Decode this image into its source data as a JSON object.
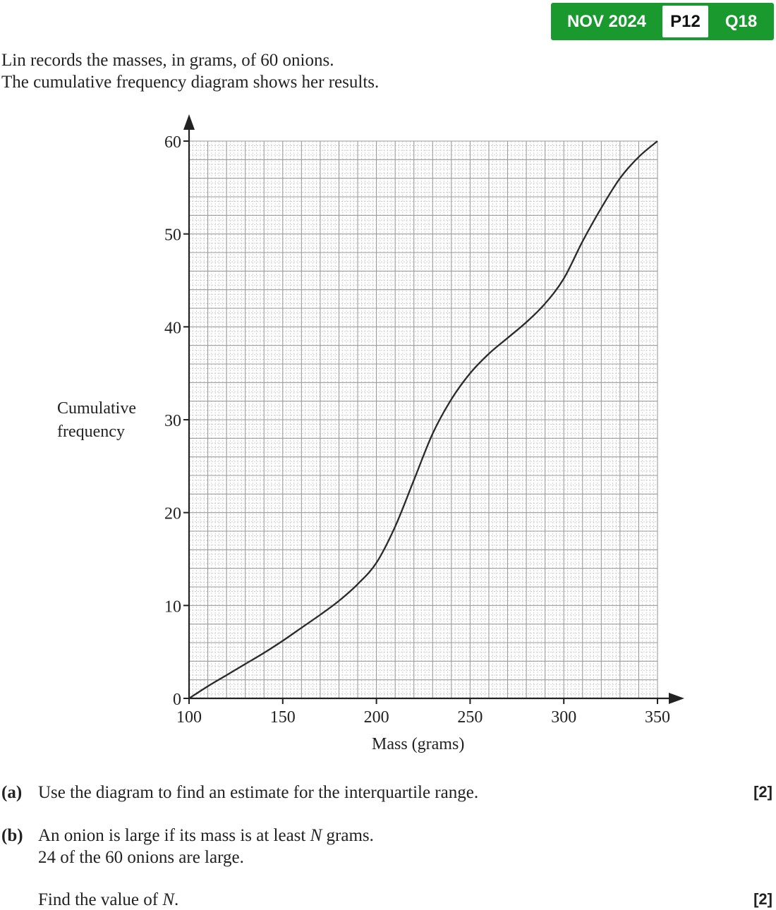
{
  "badge": {
    "session": "NOV 2024",
    "paper": "P12",
    "question": "Q18"
  },
  "intro": [
    "Lin records the masses, in grams, of 60 onions.",
    "The cumulative frequency diagram shows her results."
  ],
  "chart_data": {
    "type": "line",
    "title": "",
    "xlabel": "Mass (grams)",
    "ylabel_lines": [
      "Cumulative",
      "frequency"
    ],
    "xlim": [
      100,
      350
    ],
    "ylim": [
      0,
      60
    ],
    "x_ticks": [
      100,
      150,
      200,
      250,
      300,
      350
    ],
    "y_ticks": [
      0,
      10,
      20,
      30,
      40,
      50,
      60
    ],
    "grid": true,
    "series": [
      {
        "x": [
          100,
          110,
          120,
          130,
          140,
          150,
          160,
          170,
          180,
          190,
          200,
          210,
          220,
          230,
          240,
          250,
          260,
          270,
          280,
          290,
          300,
          310,
          320,
          330,
          340,
          350
        ],
        "y": [
          0,
          1.3,
          2.5,
          3.7,
          4.9,
          6.2,
          7.6,
          9,
          10.5,
          12.3,
          14.6,
          18.5,
          23.5,
          28.5,
          32.2,
          35,
          37.1,
          38.8,
          40.5,
          42.5,
          45.2,
          49.2,
          52.8,
          56,
          58.3,
          60
        ]
      }
    ]
  },
  "questions": [
    {
      "label": "(a)",
      "lines": [
        "Use the diagram to find an estimate for the interquartile range."
      ],
      "marks": "[2]"
    },
    {
      "label": "(b)",
      "lines": [
        "An onion is large if its mass is at least N grams.",
        "24 of the 60 onions are large."
      ],
      "marks": ""
    },
    {
      "label": "",
      "lines": [
        "Find the value of N."
      ],
      "marks": "[2]"
    }
  ]
}
